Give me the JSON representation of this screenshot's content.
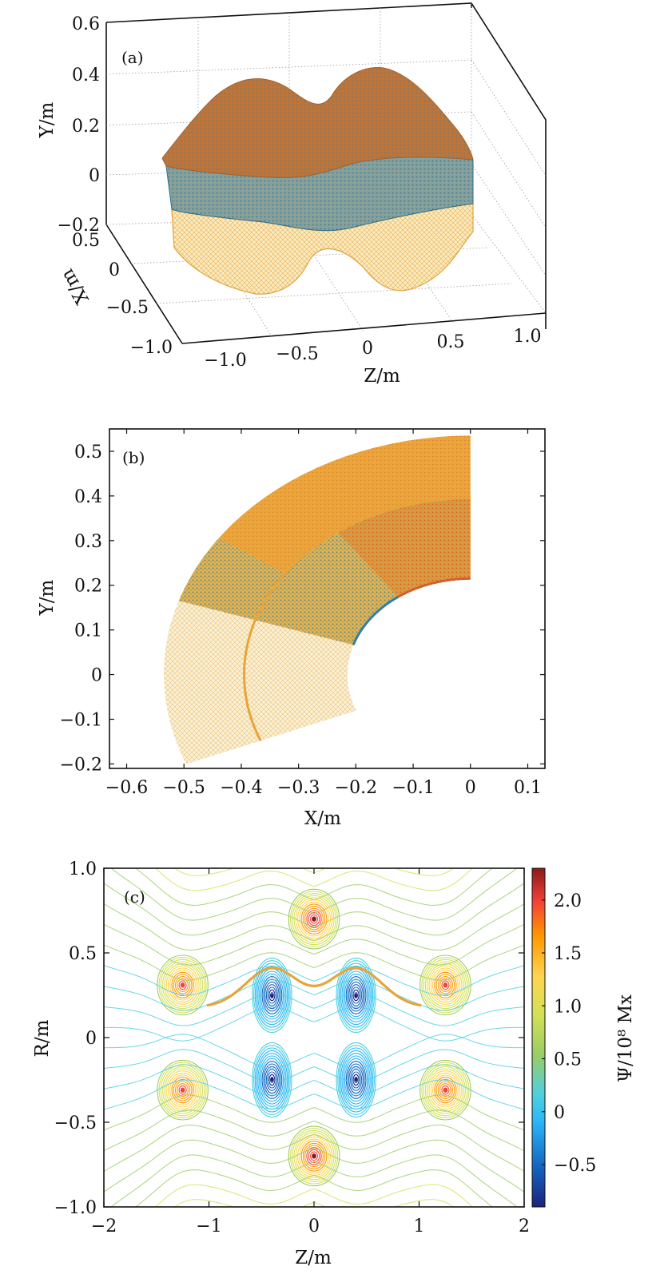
{
  "colors": {
    "blue": "#2e7ea6",
    "orange": "#e0952a",
    "rust": "#d2602a",
    "colormap": [
      "#1a237e",
      "#1565c0",
      "#29b6f6",
      "#4dd0e1",
      "#9ccc65",
      "#d4e157",
      "#ffd54f",
      "#ff9800",
      "#f44336",
      "#8b1a1a"
    ]
  },
  "chart_data": [
    {
      "panel": "(a)",
      "type": "scatter",
      "view": "3d",
      "ylabel": "Y/m",
      "xlabel": "X/m",
      "zlabel": "Z/m",
      "y_ticks": [
        "0.6",
        "0.4",
        "0.2",
        "0",
        "−0.2"
      ],
      "x_ticks": [
        "0.5",
        "0",
        "−0.5",
        "−1.0"
      ],
      "z_ticks": [
        "−1.0",
        "−0.5",
        "0",
        "0.5",
        "1.0"
      ],
      "ylim": [
        -0.2,
        0.6
      ],
      "xlim": [
        -1.0,
        0.5
      ],
      "zlim": [
        -1.0,
        1.0
      ],
      "grid": true
    },
    {
      "panel": "(b)",
      "type": "scatter",
      "xlabel": "X/m",
      "ylabel": "Y/m",
      "x_ticks": [
        "−0.6",
        "−0.5",
        "−0.4",
        "−0.3",
        "−0.2",
        "−0.1",
        "0",
        "0.1"
      ],
      "y_ticks": [
        "0.5",
        "0.4",
        "0.3",
        "0.2",
        "0.1",
        "0",
        "−0.1",
        "−0.2"
      ],
      "xlim": [
        -0.63,
        0.13
      ],
      "ylim": [
        -0.21,
        0.55
      ],
      "grid": false,
      "regions": [
        {
          "r_inner": 0.215,
          "r_outer": 0.535,
          "theta_deg": [
            0,
            34
          ],
          "color": "orange"
        },
        {
          "r_inner": 0.215,
          "r_outer": 0.395,
          "theta_deg": [
            34,
            54
          ],
          "color": "rust"
        },
        {
          "r_inner": 0.215,
          "r_outer": 0.395,
          "theta_deg": [
            54,
            90
          ],
          "color": "blue"
        },
        {
          "r_inner": 0.395,
          "r_outer": 0.535,
          "theta_deg": [
            54,
            90
          ],
          "color": "blue"
        },
        {
          "r_inner": 0.215,
          "r_outer": 0.535,
          "theta_deg": [
            90,
            112
          ],
          "color": "orange"
        }
      ]
    },
    {
      "panel": "(c)",
      "type": "contour",
      "xlabel": "Z/m",
      "ylabel": "R/m",
      "colorbar_label": "Ψ/10⁸ Mx",
      "x_ticks": [
        "−2",
        "−1",
        "0",
        "1",
        "2"
      ],
      "y_ticks": [
        "1.0",
        "0.5",
        "0",
        "−0.5",
        "−1.0"
      ],
      "colorbar_ticks": [
        "2.0",
        "1.5",
        "1.0",
        "0.5",
        "0",
        "−0.5"
      ],
      "xlim": [
        -2,
        2
      ],
      "ylim": [
        -1,
        1
      ],
      "clim": [
        -0.9,
        2.3
      ],
      "sources": [
        {
          "z": 0,
          "r": 0.7,
          "peak": 2.3
        },
        {
          "z": 0,
          "r": -0.7,
          "peak": 2.3
        },
        {
          "z": -1.25,
          "r": 0.31,
          "peak": 2.0
        },
        {
          "z": 1.25,
          "r": 0.31,
          "peak": 2.0
        },
        {
          "z": -1.25,
          "r": -0.31,
          "peak": 2.0
        },
        {
          "z": 1.25,
          "r": -0.31,
          "peak": 2.0
        },
        {
          "z": -0.4,
          "r": 0.25,
          "peak": -0.9
        },
        {
          "z": 0.4,
          "r": 0.25,
          "peak": -0.9
        },
        {
          "z": -0.4,
          "r": -0.25,
          "peak": -0.9
        },
        {
          "z": 0.4,
          "r": -0.25,
          "peak": -0.9
        }
      ]
    }
  ]
}
